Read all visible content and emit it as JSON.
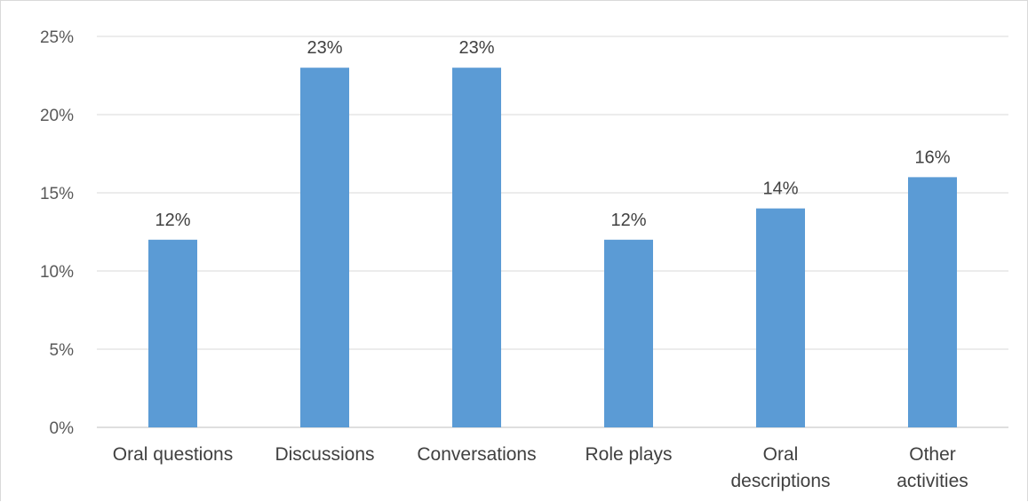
{
  "chart_data": {
    "type": "bar",
    "title": "",
    "xlabel": "",
    "ylabel": "",
    "categories": [
      [
        "Oral questions"
      ],
      [
        "Discussions"
      ],
      [
        "Conversations"
      ],
      [
        "Role plays"
      ],
      [
        "Oral",
        "descriptions"
      ],
      [
        "Other",
        "activities"
      ]
    ],
    "values": [
      12,
      23,
      23,
      12,
      14,
      16
    ],
    "data_labels": [
      "12%",
      "23%",
      "23%",
      "12%",
      "14%",
      "16%"
    ],
    "yticks": [
      0,
      5,
      10,
      15,
      20,
      25
    ],
    "ytick_labels": [
      "0%",
      "5%",
      "10%",
      "15%",
      "20%",
      "25%"
    ],
    "ylim": [
      0,
      25
    ],
    "grid": true,
    "legend": "none",
    "bar_color": "#5b9bd5"
  }
}
